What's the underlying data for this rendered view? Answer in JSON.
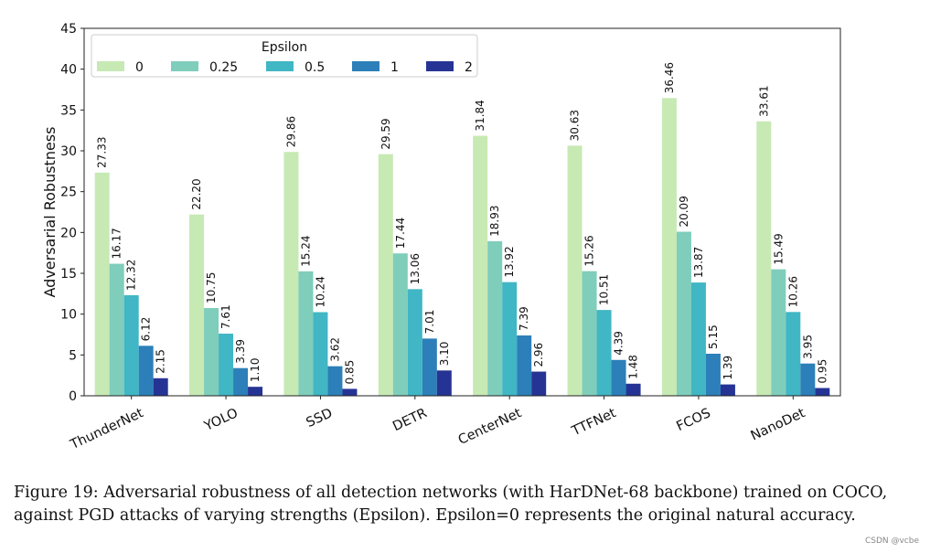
{
  "chart_data": {
    "type": "bar",
    "ylabel": "Adversarial Robustness",
    "xlabel": "",
    "ylim": [
      0,
      45
    ],
    "yticks": [
      0,
      5,
      10,
      15,
      20,
      25,
      30,
      35,
      40,
      45
    ],
    "grid": false,
    "legend": {
      "title": "Epsilon",
      "placement": "top-left"
    },
    "categories": [
      "ThunderNet",
      "YOLO",
      "SSD",
      "DETR",
      "CenterNet",
      "TTFNet",
      "FCOS",
      "NanoDet"
    ],
    "series": [
      {
        "name": "0",
        "color": "#c7e9b4",
        "values": [
          27.33,
          22.2,
          29.86,
          29.59,
          31.84,
          30.63,
          36.46,
          33.61
        ],
        "labels": [
          "27.33",
          "22.20",
          "29.86",
          "29.59",
          "31.84",
          "30.63",
          "36.46",
          "33.61"
        ]
      },
      {
        "name": "0.25",
        "color": "#7fcdbb",
        "values": [
          16.17,
          10.75,
          15.24,
          17.44,
          18.93,
          15.26,
          20.09,
          15.49
        ],
        "labels": [
          "16.17",
          "10.75",
          "15.24",
          "17.44",
          "18.93",
          "15.26",
          "20.09",
          "15.49"
        ]
      },
      {
        "name": "0.5",
        "color": "#41b6c4",
        "values": [
          12.32,
          7.61,
          10.24,
          13.06,
          13.92,
          10.51,
          13.87,
          10.26
        ],
        "labels": [
          "12.32",
          "7.61",
          "10.24",
          "13.06",
          "13.92",
          "10.51",
          "13.87",
          "10.26"
        ]
      },
      {
        "name": "1",
        "color": "#2c7fb8",
        "values": [
          6.12,
          3.39,
          3.62,
          7.01,
          7.39,
          4.39,
          5.15,
          3.95
        ],
        "labels": [
          "6.12",
          "3.39",
          "3.62",
          "7.01",
          "7.39",
          "4.39",
          "5.15",
          "3.95"
        ]
      },
      {
        "name": "2",
        "color": "#253494",
        "values": [
          2.15,
          1.1,
          0.85,
          3.1,
          2.96,
          1.48,
          1.39,
          0.95
        ],
        "labels": [
          "2.15",
          "1.10",
          "0.85",
          "3.10",
          "2.96",
          "1.48",
          "1.39",
          "0.95"
        ]
      }
    ]
  },
  "caption": "Figure 19: Adversarial robustness of all detection networks (with HarDNet-68 backbone) trained on COCO, against PGD attacks of varying strengths (Epsilon). Epsilon=0 represents the original natural accuracy.",
  "watermark": "CSDN @vcbe"
}
